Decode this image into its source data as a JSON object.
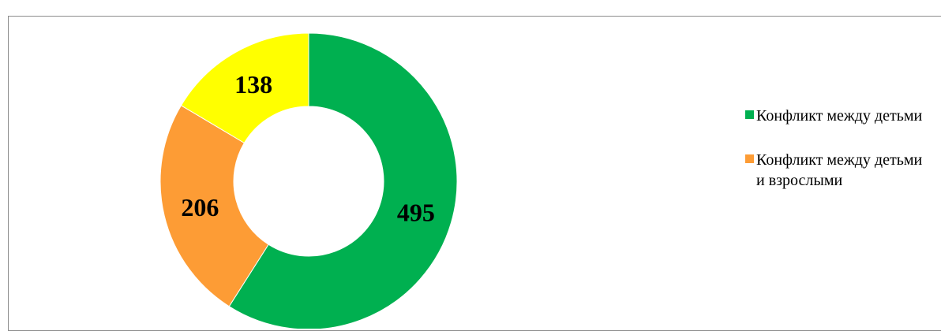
{
  "chart_data": {
    "type": "pie",
    "title": "",
    "slices": [
      {
        "label": "Конфликт между детьми",
        "value": 495,
        "color": "#00b050"
      },
      {
        "label": "Конфликт между детьми и взрослыми",
        "value": 206,
        "color": "#fd9c35"
      },
      {
        "label": "",
        "value": 138,
        "color": "#ffff00"
      }
    ],
    "legend": [
      {
        "label": "Конфликт между детьми",
        "color": "#00b050"
      },
      {
        "label": "Конфликт между детьми и взрослыми",
        "color": "#fd9c35"
      }
    ],
    "donut": true,
    "legend_position": "right"
  }
}
